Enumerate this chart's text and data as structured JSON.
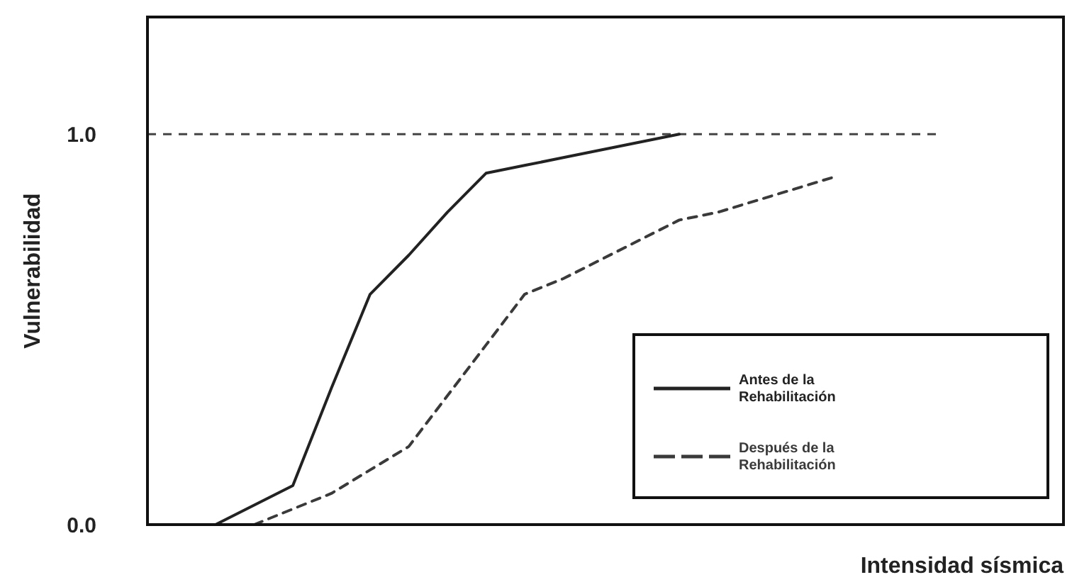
{
  "chart_data": {
    "type": "line",
    "xlabel": "Intensidad sísmica",
    "ylabel": "Vulnerabilidad",
    "categories": [
      null,
      null,
      null,
      null,
      null,
      null,
      null,
      null,
      null,
      null,
      null,
      null,
      null,
      null,
      null,
      null,
      null
    ],
    "ylim": [
      0,
      1.3
    ],
    "yticks": [
      {
        "value": 0,
        "label": "0.0"
      },
      {
        "value": 1,
        "label": "1.0"
      }
    ],
    "tick_labels": "y",
    "grid": false,
    "legend": "bottom right",
    "series": [
      {
        "name": "Antes de la Rehabilitación",
        "color": "#222222",
        "line_style": "solid",
        "values": [
          0,
          0.05,
          0.1,
          0.35,
          0.59,
          0.69,
          0.8,
          0.9,
          0.92,
          0.94,
          0.96,
          0.98,
          1.0,
          null,
          null,
          null,
          null
        ]
      },
      {
        "name": "Después de la Rehabilitación",
        "color": "#3a3a3a",
        "line_style": "dashed",
        "values": [
          null,
          0,
          0.04,
          0.08,
          0.14,
          0.2,
          0.33,
          0.46,
          0.59,
          0.63,
          0.68,
          0.73,
          0.78,
          0.8,
          0.83,
          0.86,
          0.89
        ]
      }
    ],
    "ref_lines": [
      {
        "axis": "y",
        "value": 1,
        "line_style": "dashed",
        "color": "#444444"
      }
    ]
  }
}
